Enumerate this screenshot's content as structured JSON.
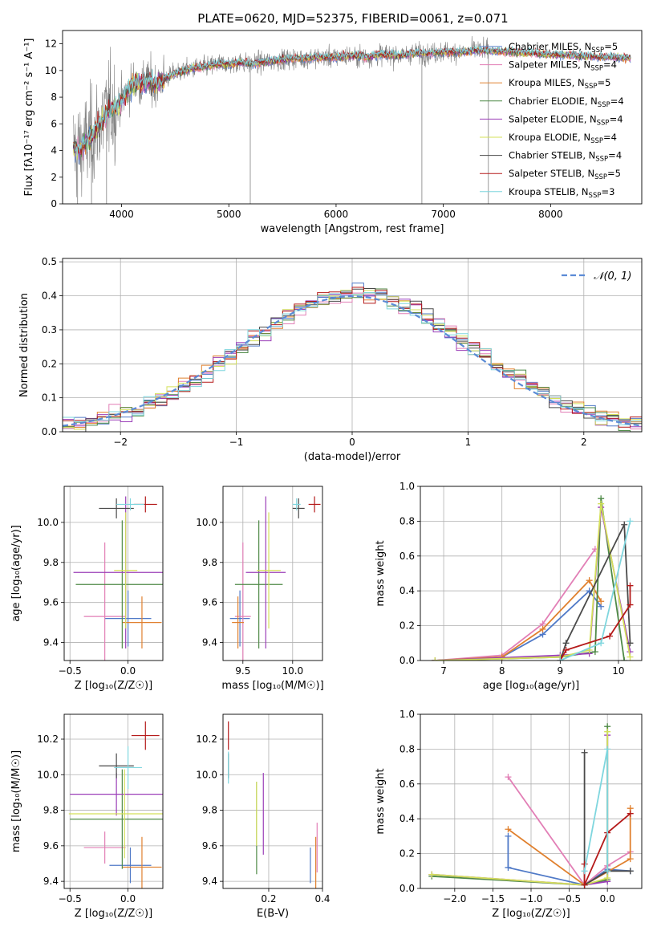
{
  "figure_title": "PLATE=0620, MJD=52375, FIBERID=0061, z=0.071",
  "models": [
    {
      "name": "Chabrier MILES",
      "nssp": "5",
      "color": "#4f79c7"
    },
    {
      "name": "Salpeter MILES",
      "nssp": "4",
      "color": "#e27fb6"
    },
    {
      "name": "Kroupa MILES",
      "nssp": "5",
      "color": "#e0802e"
    },
    {
      "name": "Chabrier ELODIE",
      "nssp": "4",
      "color": "#4f8a47"
    },
    {
      "name": "Salpeter ELODIE",
      "nssp": "4",
      "color": "#9b3fb8"
    },
    {
      "name": "Kroupa ELODIE",
      "nssp": "4",
      "color": "#d4e05a"
    },
    {
      "name": "Chabrier STELIB",
      "nssp": "4",
      "color": "#4a4a4a"
    },
    {
      "name": "Salpeter STELIB",
      "nssp": "5",
      "color": "#b51a1a"
    },
    {
      "name": "Kroupa STELIB",
      "nssp": "3",
      "color": "#7fd6de"
    }
  ],
  "chart_data": [
    {
      "id": "spectrum",
      "type": "line",
      "xlabel": "wavelength [Angstrom, rest frame]",
      "ylabel": "Flux [fλ10⁻¹⁷ erg cm⁻² s⁻¹ A⁻¹]",
      "xlim": [
        3450,
        8850
      ],
      "ylim": [
        0,
        13
      ],
      "xticks": [
        4000,
        5000,
        6000,
        7000,
        8000
      ],
      "yticks": [
        0,
        2,
        4,
        6,
        8,
        10,
        12
      ],
      "grid": false,
      "legend": "right",
      "continuum": {
        "x": [
          3550,
          3600,
          3650,
          3700,
          3750,
          3800,
          3850,
          3900,
          3950,
          4000,
          4050,
          4100,
          4150,
          4200,
          4250,
          4300,
          4350,
          4400,
          4450,
          4500,
          4600,
          4700,
          4800,
          4900,
          5000,
          5100,
          5200,
          5300,
          5400,
          5500,
          5600,
          5700,
          5800,
          5900,
          6000,
          6100,
          6200,
          6300,
          6400,
          6500,
          6600,
          6700,
          6800,
          6900,
          7000,
          7100,
          7200,
          7300,
          7400
        ],
        "y": [
          4.2,
          4.0,
          4.4,
          4.8,
          5.4,
          6.0,
          6.7,
          7.2,
          7.2,
          7.7,
          8.4,
          8.9,
          9.1,
          9.0,
          9.3,
          8.9,
          9.2,
          9.4,
          9.6,
          9.8,
          10.0,
          10.2,
          10.3,
          10.5,
          10.5,
          10.6,
          10.5,
          10.6,
          10.7,
          10.8,
          10.9,
          10.9,
          11.0,
          11.0,
          11.0,
          11.1,
          11.1,
          11.0,
          11.2,
          11.2,
          11.1,
          11.3,
          11.3,
          11.3,
          11.4,
          11.4,
          11.4,
          11.5,
          11.5
        ]
      },
      "data_range": [
        3550,
        7420
      ],
      "model_range": [
        3550,
        8750
      ]
    },
    {
      "id": "residuals",
      "type": "histogram",
      "xlabel": "(data-model)/error",
      "ylabel": "Normed distribution",
      "xlim": [
        -2.5,
        2.5
      ],
      "ylim": [
        0,
        0.51
      ],
      "xticks": [
        -2,
        -1,
        0,
        1,
        2
      ],
      "yticks": [
        0.0,
        0.1,
        0.2,
        0.3,
        0.4,
        0.5
      ],
      "grid": true,
      "reference_label": "𝒩(0, 1)",
      "legend": "top-right"
    },
    {
      "id": "age-vs-Z",
      "type": "errorbar",
      "xlabel": "Z [log₁₀(Z/Z☉)]",
      "ylabel": "age  [log₁₀(age/yr)]",
      "xlim": [
        -0.55,
        0.3
      ],
      "ylim": [
        9.31,
        10.18
      ],
      "xticks": [
        -0.5,
        0.0
      ],
      "yticks": [
        9.4,
        9.6,
        9.8,
        10.0
      ],
      "grid": true,
      "points": [
        {
          "x": 0.0,
          "xerr": 0.2,
          "y": 9.52,
          "yerr": 0.14
        },
        {
          "x": -0.2,
          "xerr": 0.18,
          "y": 9.53,
          "yerr": 0.37
        },
        {
          "x": 0.12,
          "xerr": 0.17,
          "y": 9.5,
          "yerr": 0.13
        },
        {
          "x": -0.05,
          "xerr": 0.4,
          "y": 9.69,
          "yerr": 0.32
        },
        {
          "x": -0.02,
          "xerr": 0.45,
          "y": 9.75,
          "yerr": 0.38
        },
        {
          "x": -0.02,
          "xerr": 0.1,
          "y": 9.76,
          "yerr": 0.29
        },
        {
          "x": -0.1,
          "xerr": 0.15,
          "y": 10.07,
          "yerr": 0.05
        },
        {
          "x": 0.15,
          "xerr": 0.1,
          "y": 10.09,
          "yerr": 0.04
        },
        {
          "x": 0.02,
          "xerr": 0.12,
          "y": 10.09,
          "yerr": 0.03
        }
      ]
    },
    {
      "id": "age-vs-mass",
      "type": "errorbar",
      "xlabel": "mass [log₁₀(M/M☉)]",
      "ylabel": "",
      "xlim": [
        9.3,
        10.3
      ],
      "ylim": [
        9.31,
        10.18
      ],
      "xticks": [
        9.5,
        10.0
      ],
      "yticks": [
        9.4,
        9.6,
        9.8,
        10.0
      ],
      "grid": true,
      "points": [
        {
          "x": 9.47,
          "xerr": 0.1,
          "y": 9.52,
          "yerr": 0.14
        },
        {
          "x": 9.5,
          "xerr": 0.08,
          "y": 9.53,
          "yerr": 0.37
        },
        {
          "x": 9.45,
          "xerr": 0.06,
          "y": 9.5,
          "yerr": 0.13
        },
        {
          "x": 9.66,
          "xerr": 0.24,
          "y": 9.69,
          "yerr": 0.32
        },
        {
          "x": 9.73,
          "xerr": 0.2,
          "y": 9.75,
          "yerr": 0.38
        },
        {
          "x": 9.76,
          "xerr": 0.12,
          "y": 9.76,
          "yerr": 0.29
        },
        {
          "x": 10.06,
          "xerr": 0.06,
          "y": 10.07,
          "yerr": 0.05
        },
        {
          "x": 10.22,
          "xerr": 0.06,
          "y": 10.09,
          "yerr": 0.04
        },
        {
          "x": 10.04,
          "xerr": 0.04,
          "y": 10.09,
          "yerr": 0.03
        }
      ]
    },
    {
      "id": "weight-vs-age",
      "type": "line",
      "xlabel": "age  [log₁₀(age/yr)]",
      "ylabel": "mass weight",
      "xlim": [
        6.6,
        10.4
      ],
      "ylim": [
        0,
        1.0
      ],
      "xticks": [
        7,
        8,
        9,
        10
      ],
      "yticks": [
        0.0,
        0.2,
        0.4,
        0.6,
        0.8,
        1.0
      ],
      "grid": true,
      "series": [
        {
          "x": [
            6.85,
            8.0,
            8.7,
            9.5,
            9.7
          ],
          "y": [
            0.0,
            0.02,
            0.15,
            0.4,
            0.31
          ]
        },
        {
          "x": [
            6.85,
            8.0,
            8.7,
            9.6
          ],
          "y": [
            0.0,
            0.03,
            0.21,
            0.64
          ]
        },
        {
          "x": [
            6.85,
            8.0,
            8.7,
            9.5,
            9.7
          ],
          "y": [
            0.0,
            0.02,
            0.18,
            0.46,
            0.34
          ]
        },
        {
          "x": [
            6.85,
            9.0,
            9.6,
            9.7,
            10.1
          ],
          "y": [
            0.0,
            0.02,
            0.05,
            0.93,
            0.0
          ]
        },
        {
          "x": [
            6.85,
            9.0,
            9.5,
            9.7,
            10.2
          ],
          "y": [
            0.0,
            0.03,
            0.04,
            0.88,
            0.05
          ]
        },
        {
          "x": [
            6.85,
            9.0,
            9.5,
            9.7,
            10.2
          ],
          "y": [
            0.0,
            0.02,
            0.06,
            0.9,
            0.02
          ]
        },
        {
          "x": [
            9.0,
            9.1,
            10.1,
            10.2
          ],
          "y": [
            0.0,
            0.1,
            0.78,
            0.1
          ]
        },
        {
          "x": [
            9.0,
            9.1,
            9.85,
            10.2,
            10.2
          ],
          "y": [
            0.0,
            0.06,
            0.14,
            0.32,
            0.43
          ]
        },
        {
          "x": [
            9.0,
            9.7,
            10.2
          ],
          "y": [
            0.0,
            0.1,
            0.8
          ]
        }
      ]
    },
    {
      "id": "mass-vs-Z",
      "type": "errorbar",
      "xlabel": "Z [log₁₀(Z/Z☉)]",
      "ylabel": "mass [log₁₀(M/M☉)]",
      "xlim": [
        -0.55,
        0.3
      ],
      "ylim": [
        9.36,
        10.34
      ],
      "xticks": [
        -0.5,
        0.0
      ],
      "yticks": [
        9.4,
        9.6,
        9.8,
        10.0,
        10.2
      ],
      "grid": true,
      "points": [
        {
          "x": 0.02,
          "xerr": 0.18,
          "y": 9.49,
          "yerr": 0.1
        },
        {
          "x": -0.2,
          "xerr": 0.18,
          "y": 9.59,
          "yerr": 0.09
        },
        {
          "x": 0.12,
          "xerr": 0.17,
          "y": 9.48,
          "yerr": 0.17
        },
        {
          "x": -0.05,
          "xerr": 0.45,
          "y": 9.75,
          "yerr": 0.28
        },
        {
          "x": -0.1,
          "xerr": 0.4,
          "y": 9.89,
          "yerr": 0.12
        },
        {
          "x": -0.03,
          "xerr": 0.48,
          "y": 9.78,
          "yerr": 0.25
        },
        {
          "x": -0.1,
          "xerr": 0.15,
          "y": 10.05,
          "yerr": 0.07
        },
        {
          "x": 0.15,
          "xerr": 0.12,
          "y": 10.22,
          "yerr": 0.08
        },
        {
          "x": 0.0,
          "xerr": 0.12,
          "y": 10.04,
          "yerr": 0.12
        }
      ]
    },
    {
      "id": "mass-vs-EBV",
      "type": "errorbar",
      "xlabel": "E(B-V)",
      "ylabel": "",
      "xlim": [
        0.03,
        0.4
      ],
      "ylim": [
        9.36,
        10.34
      ],
      "xticks": [
        0.2,
        0.4
      ],
      "yticks": [
        9.4,
        9.6,
        9.8,
        10.0,
        10.2
      ],
      "grid": true,
      "points": [
        {
          "x": 0.355,
          "xerr": 0,
          "y": 9.49,
          "yerr": 0.1
        },
        {
          "x": 0.38,
          "xerr": 0,
          "y": 9.59,
          "yerr": 0.14
        },
        {
          "x": 0.375,
          "xerr": 0,
          "y": 9.48,
          "yerr": 0.17
        },
        {
          "x": 0.155,
          "xerr": 0,
          "y": 9.7,
          "yerr": 0.26
        },
        {
          "x": 0.18,
          "xerr": 0,
          "y": 9.78,
          "yerr": 0.23
        },
        {
          "x": 0.155,
          "xerr": 0,
          "y": 9.78,
          "yerr": 0.18
        },
        {
          "x": 0.05,
          "xerr": 0,
          "y": 10.05,
          "yerr": 0.07
        },
        {
          "x": 0.05,
          "xerr": 0,
          "y": 10.22,
          "yerr": 0.08
        },
        {
          "x": 0.05,
          "xerr": 0,
          "y": 10.04,
          "yerr": 0.09
        }
      ]
    },
    {
      "id": "weight-vs-Z",
      "type": "line",
      "xlabel": "Z [log₁₀(Z/Z☉)]",
      "ylabel": "mass weight",
      "xlim": [
        -2.45,
        0.45
      ],
      "ylim": [
        0,
        1.0
      ],
      "xticks": [
        -2.0,
        -1.5,
        -1.0,
        -0.5,
        0.0
      ],
      "yticks": [
        0.0,
        0.2,
        0.4,
        0.6,
        0.8,
        1.0
      ],
      "grid": true,
      "series": [
        {
          "x": [
            -1.3,
            -1.3,
            -0.3,
            0.0,
            0.3
          ],
          "y": [
            0.3,
            0.12,
            0.02,
            0.11,
            0.1
          ]
        },
        {
          "x": [
            -1.3,
            -0.3,
            0.0,
            0.3
          ],
          "y": [
            0.64,
            0.02,
            0.13,
            0.21
          ]
        },
        {
          "x": [
            -1.3,
            -0.3,
            0.3,
            0.3
          ],
          "y": [
            0.34,
            0.02,
            0.17,
            0.46
          ]
        },
        {
          "x": [
            -2.3,
            -0.3,
            0.0,
            0.0
          ],
          "y": [
            0.07,
            0.02,
            0.05,
            0.93
          ]
        },
        {
          "x": [
            -2.3,
            -0.3,
            0.0,
            0.0
          ],
          "y": [
            0.08,
            0.02,
            0.04,
            0.88
          ]
        },
        {
          "x": [
            -2.3,
            -0.3,
            0.0,
            0.0
          ],
          "y": [
            0.08,
            0.02,
            0.06,
            0.9
          ]
        },
        {
          "x": [
            -0.3,
            -0.3,
            0.0,
            0.3
          ],
          "y": [
            0.78,
            0.02,
            0.1,
            0.1
          ]
        },
        {
          "x": [
            -0.3,
            -0.3,
            0.0,
            0.3
          ],
          "y": [
            0.14,
            0.02,
            0.32,
            0.43
          ]
        },
        {
          "x": [
            -0.3,
            0.0,
            0.0
          ],
          "y": [
            0.1,
            0.8,
            0.1
          ]
        }
      ]
    }
  ]
}
